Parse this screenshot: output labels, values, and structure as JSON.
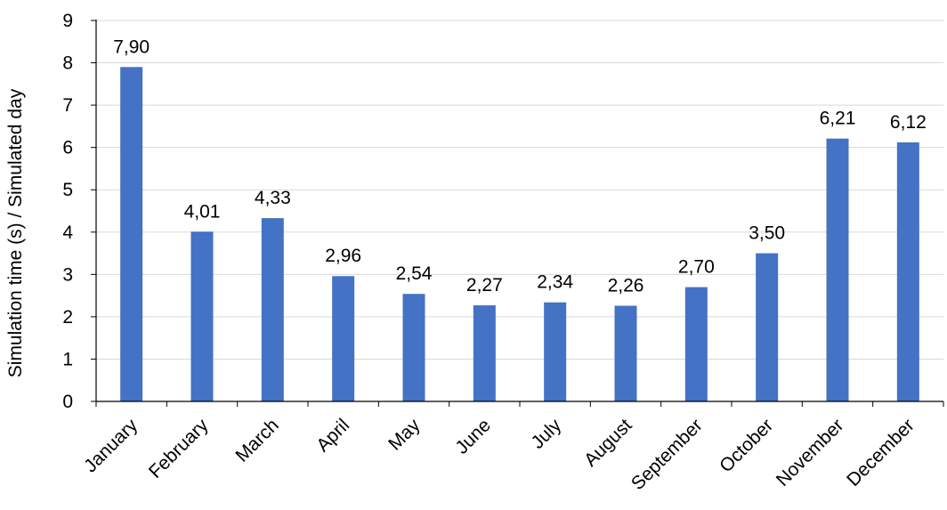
{
  "chart_data": {
    "type": "bar",
    "title": "",
    "xlabel": "",
    "ylabel": "Simulation time (s) / Simulated day",
    "ylim": [
      0,
      9
    ],
    "yticks": [
      0,
      1,
      2,
      3,
      4,
      5,
      6,
      7,
      8,
      9
    ],
    "grid": true,
    "legend": "none",
    "bar_color": "#4472c4",
    "categories": [
      "January",
      "February",
      "March",
      "April",
      "May",
      "June",
      "July",
      "August",
      "September",
      "October",
      "November",
      "December"
    ],
    "values": [
      7.9,
      4.01,
      4.33,
      2.96,
      2.54,
      2.27,
      2.34,
      2.26,
      2.7,
      3.5,
      6.21,
      6.12
    ],
    "value_labels": [
      "7,90",
      "4,01",
      "4,33",
      "2,96",
      "2,54",
      "2,27",
      "2,34",
      "2,26",
      "2,70",
      "3,50",
      "6,21",
      "6,12"
    ]
  }
}
